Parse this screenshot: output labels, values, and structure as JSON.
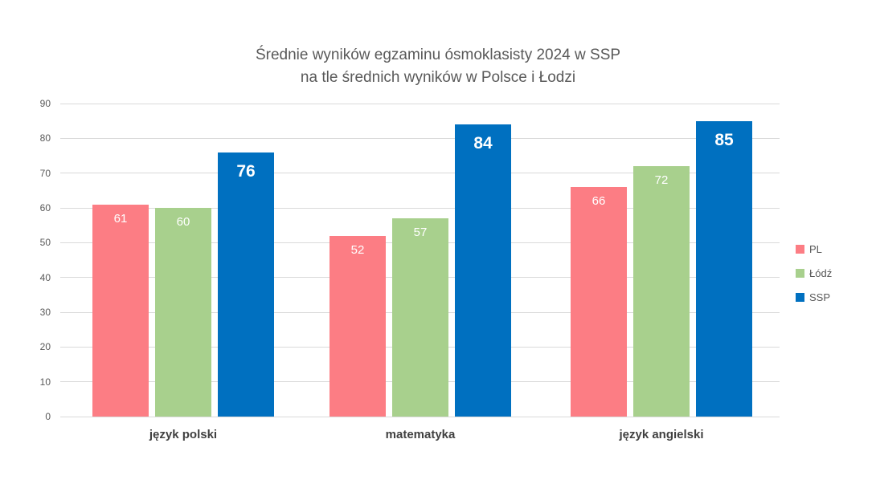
{
  "title": {
    "line1": "Średnie wyników egzaminu ósmoklasisty 2024 w SSP",
    "line2": "na tle średnich wyników w Polsce i Łodzi"
  },
  "chart_data": {
    "type": "bar",
    "title": "Średnie wyników egzaminu ósmoklasisty 2024 w SSP na tle średnich wyników w Polsce i Łodzi",
    "categories": [
      "język polski",
      "matematyka",
      "język angielski"
    ],
    "series": [
      {
        "name": "PL",
        "color": "#FC7D84",
        "values": [
          61,
          52,
          66
        ],
        "label_weight": "normal"
      },
      {
        "name": "Łódź",
        "color": "#A8D08D",
        "values": [
          60,
          57,
          72
        ],
        "label_weight": "normal"
      },
      {
        "name": "SSP",
        "color": "#0070C0",
        "values": [
          76,
          84,
          85
        ],
        "label_weight": "bold"
      }
    ],
    "ylim": [
      0,
      90
    ],
    "yticks": [
      0,
      10,
      20,
      30,
      40,
      50,
      60,
      70,
      80,
      90
    ],
    "grid": true,
    "legend_position": "right",
    "data_labels": true
  },
  "styles": {
    "background": "#FFFFFF",
    "grid_color": "#D9D9D9",
    "axis_text_color": "#595959",
    "category_text_color": "#404040",
    "title_color": "#595959",
    "data_label_color": "#FFFFFF"
  }
}
